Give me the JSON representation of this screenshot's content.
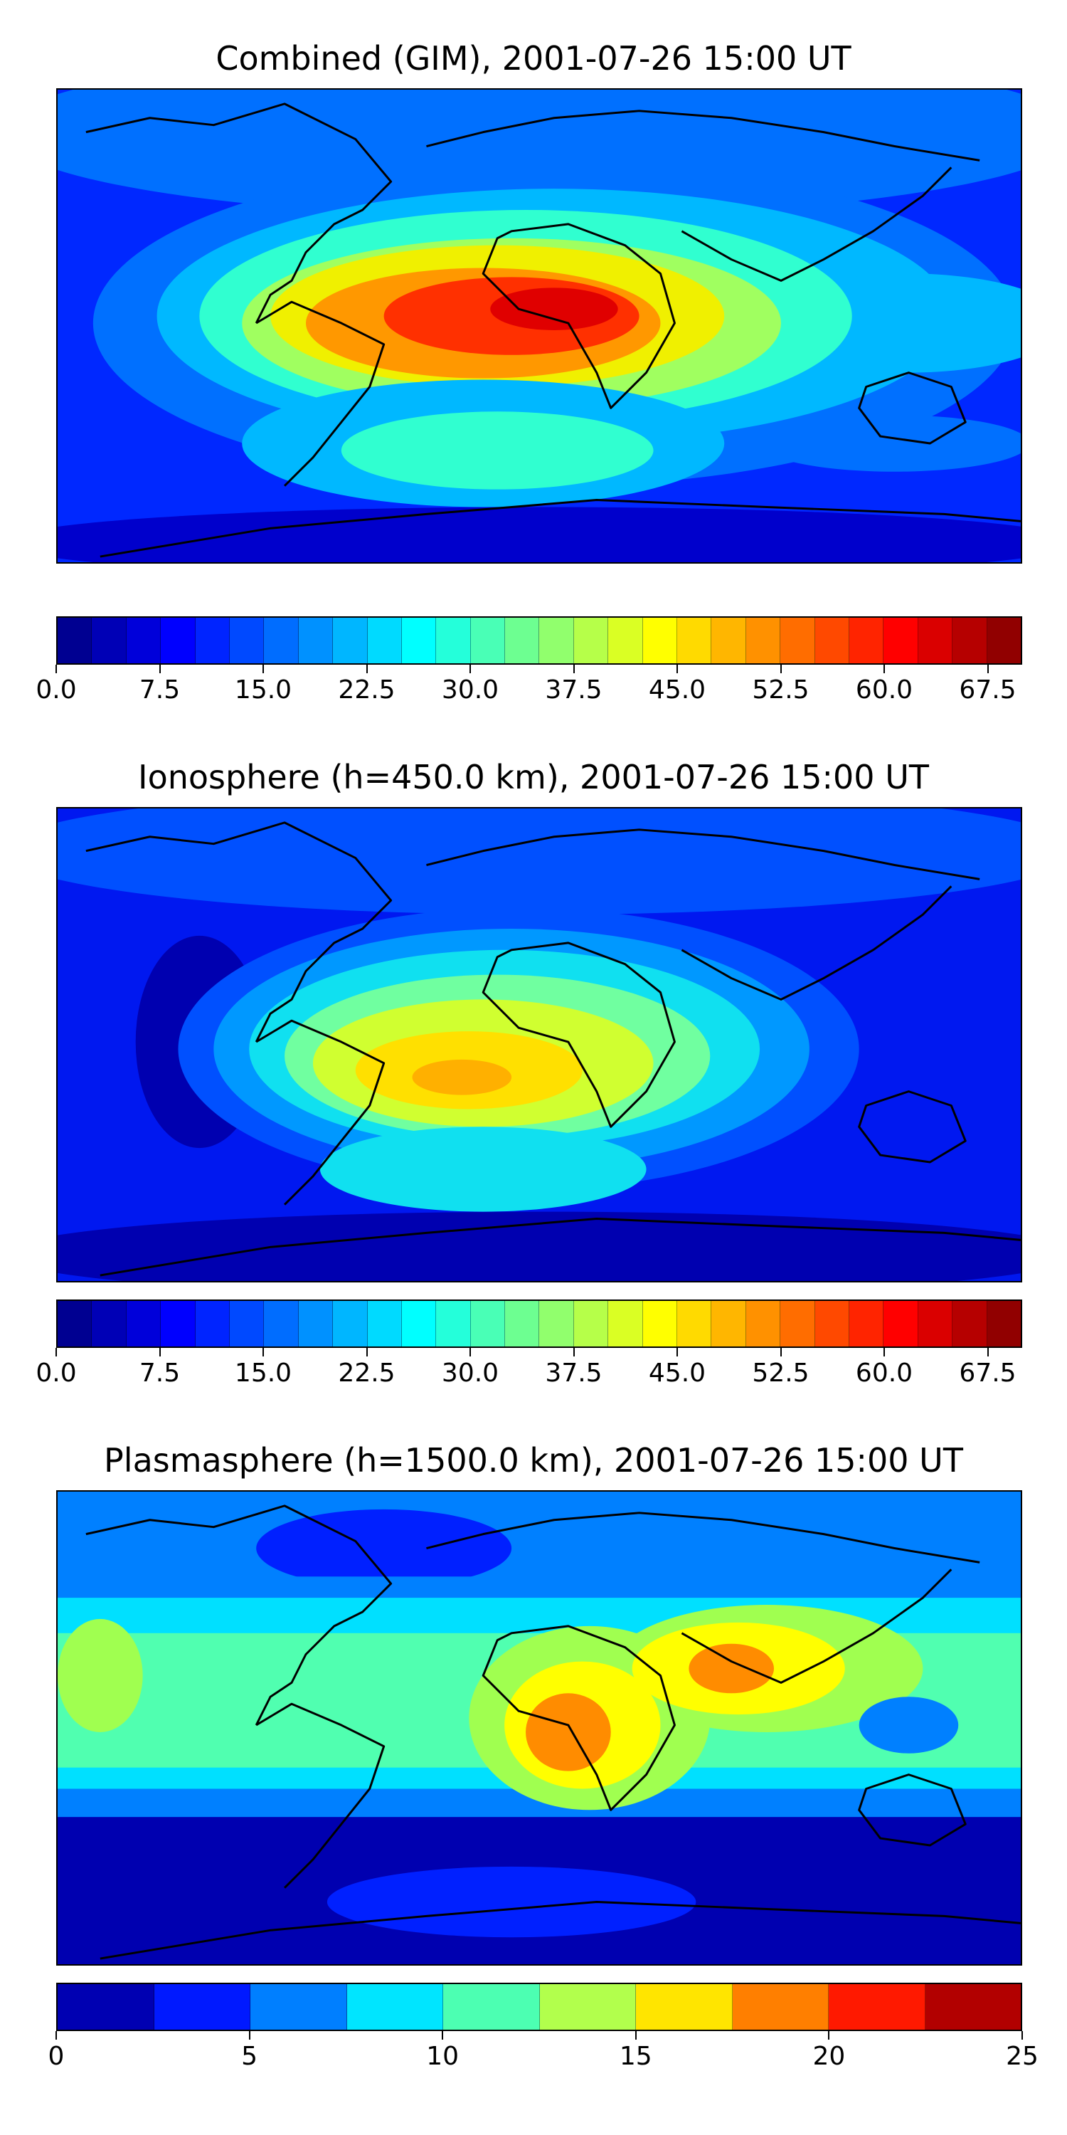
{
  "panels": [
    {
      "id": "combined",
      "title": "Combined (GIM), 2001-07-26 15:00 UT",
      "colorbar": {
        "min": 0,
        "max": 70,
        "n_bins": 28,
        "tick_values": [
          0,
          7.5,
          15,
          22.5,
          30,
          37.5,
          45,
          52.5,
          60,
          67.5
        ],
        "tick_labels": [
          "0.0",
          "7.5",
          "15.0",
          "22.5",
          "30.0",
          "37.5",
          "45.0",
          "52.5",
          "60.0",
          "67.5"
        ]
      },
      "map_colors": [
        "#0000cc",
        "#0028ff",
        "#0070ff",
        "#00b8ff",
        "#30ffd0",
        "#a0ff60",
        "#f0f000",
        "#ff9800",
        "#ff3000",
        "#e00000"
      ]
    },
    {
      "id": "ionosphere",
      "title": "Ionosphere  (h=450.0 km), 2001-07-26 15:00 UT",
      "colorbar": {
        "min": 0,
        "max": 70,
        "n_bins": 28,
        "tick_values": [
          0,
          7.5,
          15,
          22.5,
          30,
          37.5,
          45,
          52.5,
          60,
          67.5
        ],
        "tick_labels": [
          "0.0",
          "7.5",
          "15.0",
          "22.5",
          "30.0",
          "37.5",
          "45.0",
          "52.5",
          "60.0",
          "67.5"
        ]
      },
      "map_colors": [
        "#0000b0",
        "#0018f0",
        "#0050ff",
        "#0098ff",
        "#10e0f0",
        "#70ffa0",
        "#d0ff30",
        "#ffe000",
        "#ffb000"
      ]
    },
    {
      "id": "plasmasphere",
      "title": "Plasmasphere (h=1500.0 km), 2001-07-26 15:00 UT",
      "colorbar": {
        "min": 0,
        "max": 25,
        "n_bins": 10,
        "tick_values": [
          0,
          5,
          10,
          15,
          20,
          25
        ],
        "tick_labels": [
          "0",
          "5",
          "10",
          "15",
          "20",
          "25"
        ]
      },
      "map_colors": [
        "#0000b0",
        "#0020ff",
        "#0080ff",
        "#00e0ff",
        "#50ffb0",
        "#a0ff50",
        "#ffff00",
        "#ff8c00"
      ]
    }
  ],
  "colors": {
    "coastline": "#000000",
    "jet_stops": [
      "#00007f",
      "#0000ff",
      "#007fff",
      "#00ffff",
      "#7fff7f",
      "#ffff00",
      "#ff7f00",
      "#ff0000",
      "#7f0000"
    ]
  }
}
